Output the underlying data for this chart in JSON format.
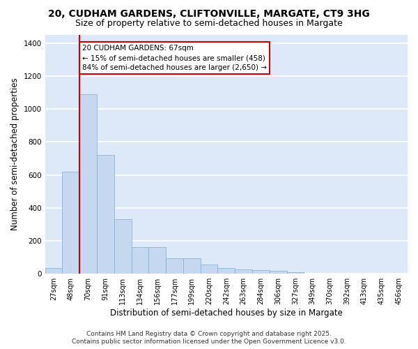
{
  "title_line1": "20, CUDHAM GARDENS, CLIFTONVILLE, MARGATE, CT9 3HG",
  "title_line2": "Size of property relative to semi-detached houses in Margate",
  "xlabel": "Distribution of semi-detached houses by size in Margate",
  "ylabel": "Number of semi-detached properties",
  "bar_color": "#c5d8f0",
  "bar_edge_color": "#7aadd4",
  "background_color": "#dde8f8",
  "figure_background": "#ffffff",
  "grid_color": "#ffffff",
  "categories": [
    "27sqm",
    "48sqm",
    "70sqm",
    "91sqm",
    "113sqm",
    "134sqm",
    "156sqm",
    "177sqm",
    "199sqm",
    "220sqm",
    "242sqm",
    "263sqm",
    "284sqm",
    "306sqm",
    "327sqm",
    "349sqm",
    "370sqm",
    "392sqm",
    "413sqm",
    "435sqm",
    "456sqm"
  ],
  "values": [
    35,
    620,
    1090,
    720,
    330,
    160,
    160,
    95,
    95,
    55,
    35,
    28,
    22,
    18,
    10,
    0,
    0,
    0,
    0,
    0,
    0
  ],
  "ylim": [
    0,
    1450
  ],
  "yticks": [
    0,
    200,
    400,
    600,
    800,
    1000,
    1200,
    1400
  ],
  "red_line_color": "#cc0000",
  "annotation_title": "20 CUDHAM GARDENS: 67sqm",
  "annotation_line2": "← 15% of semi-detached houses are smaller (458)",
  "annotation_line3": "84% of semi-detached houses are larger (2,650) →",
  "annotation_box_color": "#ffffff",
  "annotation_border_color": "#cc0000",
  "footer_line1": "Contains HM Land Registry data © Crown copyright and database right 2025.",
  "footer_line2": "Contains public sector information licensed under the Open Government Licence v3.0.",
  "title_fontsize": 10,
  "subtitle_fontsize": 9,
  "tick_fontsize": 7,
  "ylabel_fontsize": 8.5,
  "xlabel_fontsize": 8.5,
  "footer_fontsize": 6.5,
  "annotation_fontsize": 7.5
}
